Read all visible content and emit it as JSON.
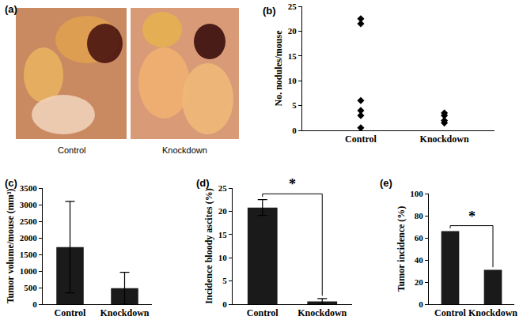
{
  "panel_a": {
    "label": "(a)",
    "images": [
      "Control",
      "Knockdown"
    ]
  },
  "chart_data": [
    {
      "panel": "(b)",
      "type": "scatter",
      "y_label": "No. nodules/mouse",
      "categories": [
        "Control",
        "Knockdown"
      ],
      "values": [
        [
          22.5,
          21.5,
          6,
          4,
          3,
          0.5
        ],
        [
          3.5,
          3,
          2,
          1.5
        ]
      ],
      "color": "#000000",
      "marker": "diamond",
      "ylim": [
        0,
        25
      ],
      "yticks": [
        0,
        5,
        10,
        15,
        20,
        25
      ]
    },
    {
      "panel": "(c)",
      "type": "bar",
      "y_label": "Tumor volume/mouse (mm³)",
      "categories": [
        "Control",
        "Knockdown"
      ],
      "values": [
        1720,
        480
      ],
      "errors": [
        1380,
        480
      ],
      "color": "#1a1a1a",
      "ylim": [
        0,
        3500
      ],
      "yticks": [
        0,
        500,
        1000,
        1500,
        2000,
        2500,
        3000,
        3500
      ]
    },
    {
      "panel": "(d)",
      "type": "bar",
      "y_label": "Incidence bloody ascites (%)",
      "categories": [
        "Control",
        "Knockdown"
      ],
      "values": [
        20.8,
        0.6
      ],
      "errors": [
        1.7,
        0.6
      ],
      "color": "#1a1a1a",
      "ylim": [
        0,
        25
      ],
      "yticks": [
        0,
        5,
        10,
        15,
        20,
        25
      ],
      "annotations": [
        {
          "text": "*",
          "between": [
            "Control",
            "Knockdown"
          ]
        }
      ]
    },
    {
      "panel": "(e)",
      "type": "bar",
      "y_label": "Tumor incidence (%)",
      "categories": [
        "Control",
        "Knockdown"
      ],
      "values": [
        66,
        31
      ],
      "color": "#1a1a1a",
      "ylim": [
        0,
        100
      ],
      "yticks": [
        0,
        20,
        40,
        60,
        80,
        100
      ],
      "annotations": [
        {
          "text": "*",
          "between": [
            "Control",
            "Knockdown"
          ]
        }
      ]
    }
  ]
}
